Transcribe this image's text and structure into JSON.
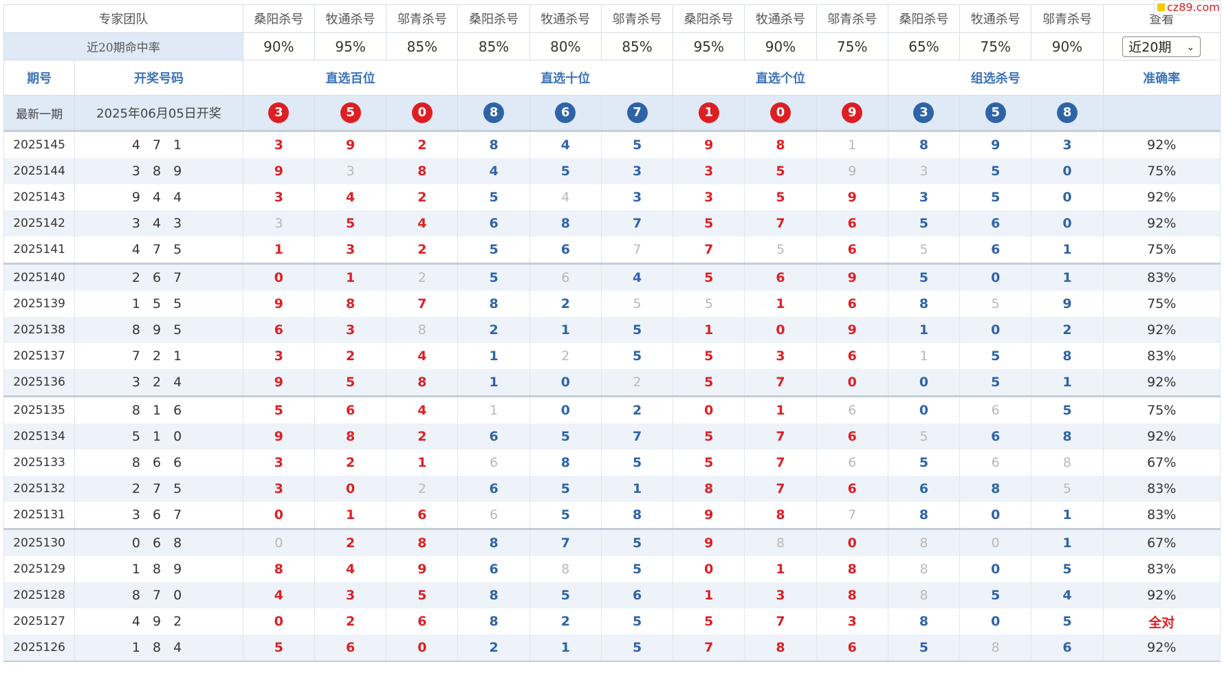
{
  "table": {
    "team_label": "专家团队",
    "view_label": "查看",
    "experts": [
      "桑阳杀号",
      "牧通杀号",
      "邬青杀号",
      "桑阳杀号",
      "牧通杀号",
      "邬青杀号",
      "桑阳杀号",
      "牧通杀号",
      "邬青杀号",
      "桑阳杀号",
      "牧通杀号",
      "邬青杀号"
    ],
    "rate_label": "近20期命中率",
    "rates": [
      "90%",
      "95%",
      "85%",
      "85%",
      "80%",
      "85%",
      "95%",
      "90%",
      "75%",
      "65%",
      "75%",
      "90%"
    ],
    "period_select": "近20期",
    "headers": {
      "period": "期号",
      "draw": "开奖号码",
      "groups": [
        "直选百位",
        "直选十位",
        "直选个位",
        "组选杀号"
      ],
      "accuracy": "准确率"
    },
    "latest": {
      "label": "最新一期",
      "draw_date": "2025年06月05日开奖",
      "balls": [
        "3",
        "5",
        "0",
        "8",
        "6",
        "7",
        "1",
        "0",
        "9",
        "3",
        "5",
        "8"
      ]
    },
    "rows": [
      {
        "period": "2025145",
        "draw": "4 7 1",
        "kills": [
          "3",
          "9",
          "2",
          "8",
          "4",
          "5",
          "9",
          "8",
          "1",
          "8",
          "9",
          "3"
        ],
        "hits": [
          1,
          1,
          1,
          1,
          1,
          1,
          1,
          1,
          0,
          1,
          1,
          1
        ],
        "accuracy": "92%"
      },
      {
        "period": "2025144",
        "draw": "3 8 9",
        "kills": [
          "9",
          "3",
          "8",
          "4",
          "5",
          "3",
          "3",
          "5",
          "9",
          "3",
          "5",
          "0"
        ],
        "hits": [
          1,
          0,
          1,
          1,
          1,
          1,
          1,
          1,
          0,
          0,
          1,
          1
        ],
        "accuracy": "75%"
      },
      {
        "period": "2025143",
        "draw": "9 4 4",
        "kills": [
          "3",
          "4",
          "2",
          "5",
          "4",
          "3",
          "3",
          "5",
          "9",
          "3",
          "5",
          "0"
        ],
        "hits": [
          1,
          1,
          1,
          1,
          0,
          1,
          1,
          1,
          1,
          1,
          1,
          1
        ],
        "accuracy": "92%"
      },
      {
        "period": "2025142",
        "draw": "3 4 3",
        "kills": [
          "3",
          "5",
          "4",
          "6",
          "8",
          "7",
          "5",
          "7",
          "6",
          "5",
          "6",
          "0"
        ],
        "hits": [
          0,
          1,
          1,
          1,
          1,
          1,
          1,
          1,
          1,
          1,
          1,
          1
        ],
        "accuracy": "92%"
      },
      {
        "period": "2025141",
        "draw": "4 7 5",
        "kills": [
          "1",
          "3",
          "2",
          "5",
          "6",
          "7",
          "7",
          "5",
          "6",
          "5",
          "6",
          "1"
        ],
        "hits": [
          1,
          1,
          1,
          1,
          1,
          0,
          1,
          0,
          1,
          0,
          1,
          1
        ],
        "accuracy": "75%"
      },
      {
        "period": "2025140",
        "draw": "2 6 7",
        "kills": [
          "0",
          "1",
          "2",
          "5",
          "6",
          "4",
          "5",
          "6",
          "9",
          "5",
          "0",
          "1"
        ],
        "hits": [
          1,
          1,
          0,
          1,
          0,
          1,
          1,
          1,
          1,
          1,
          1,
          1
        ],
        "accuracy": "83%"
      },
      {
        "period": "2025139",
        "draw": "1 5 5",
        "kills": [
          "9",
          "8",
          "7",
          "8",
          "2",
          "5",
          "5",
          "1",
          "6",
          "8",
          "5",
          "9"
        ],
        "hits": [
          1,
          1,
          1,
          1,
          1,
          0,
          0,
          1,
          1,
          1,
          0,
          1
        ],
        "accuracy": "75%"
      },
      {
        "period": "2025138",
        "draw": "8 9 5",
        "kills": [
          "6",
          "3",
          "8",
          "2",
          "1",
          "5",
          "1",
          "0",
          "9",
          "1",
          "0",
          "2"
        ],
        "hits": [
          1,
          1,
          0,
          1,
          1,
          1,
          1,
          1,
          1,
          1,
          1,
          1
        ],
        "accuracy": "92%"
      },
      {
        "period": "2025137",
        "draw": "7 2 1",
        "kills": [
          "3",
          "2",
          "4",
          "1",
          "2",
          "5",
          "5",
          "3",
          "6",
          "1",
          "5",
          "8"
        ],
        "hits": [
          1,
          1,
          1,
          1,
          0,
          1,
          1,
          1,
          1,
          0,
          1,
          1
        ],
        "accuracy": "83%"
      },
      {
        "period": "2025136",
        "draw": "3 2 4",
        "kills": [
          "9",
          "5",
          "8",
          "1",
          "0",
          "2",
          "5",
          "7",
          "0",
          "0",
          "5",
          "1"
        ],
        "hits": [
          1,
          1,
          1,
          1,
          1,
          0,
          1,
          1,
          1,
          1,
          1,
          1
        ],
        "accuracy": "92%"
      },
      {
        "period": "2025135",
        "draw": "8 1 6",
        "kills": [
          "5",
          "6",
          "4",
          "1",
          "0",
          "2",
          "0",
          "1",
          "6",
          "0",
          "6",
          "5"
        ],
        "hits": [
          1,
          1,
          1,
          0,
          1,
          1,
          1,
          1,
          0,
          1,
          0,
          1
        ],
        "accuracy": "75%"
      },
      {
        "period": "2025134",
        "draw": "5 1 0",
        "kills": [
          "9",
          "8",
          "2",
          "6",
          "5",
          "7",
          "5",
          "7",
          "6",
          "5",
          "6",
          "8"
        ],
        "hits": [
          1,
          1,
          1,
          1,
          1,
          1,
          1,
          1,
          1,
          0,
          1,
          1
        ],
        "accuracy": "92%"
      },
      {
        "period": "2025133",
        "draw": "8 6 6",
        "kills": [
          "3",
          "2",
          "1",
          "6",
          "8",
          "5",
          "5",
          "7",
          "6",
          "5",
          "6",
          "8"
        ],
        "hits": [
          1,
          1,
          1,
          0,
          1,
          1,
          1,
          1,
          0,
          1,
          0,
          0
        ],
        "accuracy": "67%"
      },
      {
        "period": "2025132",
        "draw": "2 7 5",
        "kills": [
          "3",
          "0",
          "2",
          "6",
          "5",
          "1",
          "8",
          "7",
          "6",
          "6",
          "8",
          "5"
        ],
        "hits": [
          1,
          1,
          0,
          1,
          1,
          1,
          1,
          1,
          1,
          1,
          1,
          0
        ],
        "accuracy": "83%"
      },
      {
        "period": "2025131",
        "draw": "3 6 7",
        "kills": [
          "0",
          "1",
          "6",
          "6",
          "5",
          "8",
          "9",
          "8",
          "7",
          "8",
          "0",
          "1"
        ],
        "hits": [
          1,
          1,
          1,
          0,
          1,
          1,
          1,
          1,
          0,
          1,
          1,
          1
        ],
        "accuracy": "83%"
      },
      {
        "period": "2025130",
        "draw": "0 6 8",
        "kills": [
          "0",
          "2",
          "8",
          "8",
          "7",
          "5",
          "9",
          "8",
          "0",
          "8",
          "0",
          "1"
        ],
        "hits": [
          0,
          1,
          1,
          1,
          1,
          1,
          1,
          0,
          1,
          0,
          0,
          1
        ],
        "accuracy": "67%"
      },
      {
        "period": "2025129",
        "draw": "1 8 9",
        "kills": [
          "8",
          "4",
          "9",
          "6",
          "8",
          "5",
          "0",
          "1",
          "8",
          "8",
          "0",
          "5"
        ],
        "hits": [
          1,
          1,
          1,
          1,
          0,
          1,
          1,
          1,
          1,
          0,
          1,
          1
        ],
        "accuracy": "83%"
      },
      {
        "period": "2025128",
        "draw": "8 7 0",
        "kills": [
          "4",
          "3",
          "5",
          "8",
          "5",
          "6",
          "1",
          "3",
          "8",
          "8",
          "5",
          "4"
        ],
        "hits": [
          1,
          1,
          1,
          1,
          1,
          1,
          1,
          1,
          1,
          0,
          1,
          1
        ],
        "accuracy": "92%"
      },
      {
        "period": "2025127",
        "draw": "4 9 2",
        "kills": [
          "0",
          "2",
          "6",
          "8",
          "2",
          "5",
          "5",
          "7",
          "3",
          "8",
          "0",
          "5"
        ],
        "hits": [
          1,
          1,
          1,
          1,
          1,
          1,
          1,
          1,
          1,
          1,
          1,
          1
        ],
        "accuracy": "全对"
      },
      {
        "period": "2025126",
        "draw": "1 8 4",
        "kills": [
          "5",
          "6",
          "0",
          "2",
          "1",
          "5",
          "7",
          "8",
          "6",
          "5",
          "8",
          "6"
        ],
        "hits": [
          1,
          1,
          1,
          1,
          1,
          1,
          1,
          1,
          1,
          1,
          0,
          1
        ],
        "accuracy": "92%"
      }
    ]
  },
  "watermark": "cz89.com",
  "colors": {
    "red": "#dd1f24",
    "blue": "#2e63a8",
    "grey": "#b8b8b8",
    "header_blue": "#3b73b7",
    "row_alt": "#eef3f9"
  }
}
